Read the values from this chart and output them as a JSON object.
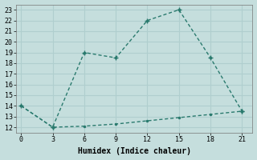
{
  "xlabel": "Humidex (Indice chaleur)",
  "ylabel": "",
  "bg_color": "#c5dedd",
  "line1_x": [
    0,
    3,
    6,
    9,
    12,
    15,
    18,
    21
  ],
  "line1_y": [
    14,
    12,
    19,
    18.5,
    22,
    23,
    18.5,
    13.5
  ],
  "line2_x": [
    0,
    3,
    6,
    9,
    12,
    15,
    18,
    21
  ],
  "line2_y": [
    14,
    12,
    12.1,
    12.3,
    12.6,
    12.9,
    13.2,
    13.5
  ],
  "line_color": "#2a7a6e",
  "xlim": [
    -0.5,
    22
  ],
  "ylim": [
    11.5,
    23.5
  ],
  "xticks": [
    0,
    3,
    6,
    9,
    12,
    15,
    18,
    21
  ],
  "yticks": [
    12,
    13,
    14,
    15,
    16,
    17,
    18,
    19,
    20,
    21,
    22,
    23
  ],
  "markersize": 3,
  "linewidth": 1.0,
  "grid_color": "#b0cece",
  "xlabel_fontsize": 7,
  "tick_fontsize": 6
}
